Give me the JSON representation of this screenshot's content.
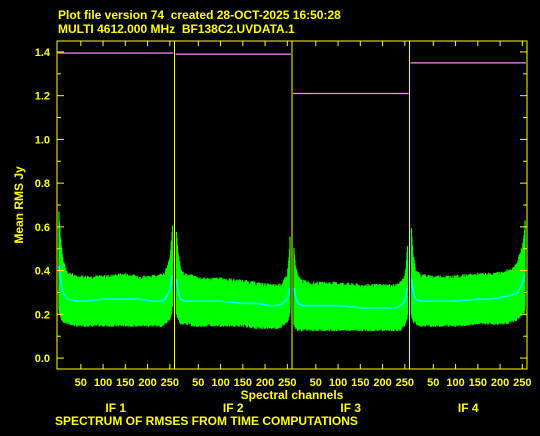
{
  "header": {
    "line1": "Plot file version 74  created 28-OCT-2025 16:50:28",
    "line2": "MULTI 4612.000 MHz  BF138C2.UVDATA.1"
  },
  "footer": "SPECTRUM OF RMSES FROM TIME COMPUTATIONS",
  "colors": {
    "text": "#ffff00",
    "band": "#00ff00",
    "mean": "#00ffff",
    "max_line": "#ff88ff",
    "axis": "#ffff00"
  },
  "chart_data": {
    "type": "line",
    "ylabel": "Mean RMS Jy",
    "xlabel": "Spectral channels",
    "ylim": [
      -0.05,
      1.45
    ],
    "yticks": [
      "0.0",
      "0.2",
      "0.4",
      "0.6",
      "0.8",
      "1.0",
      "1.2",
      "1.4"
    ],
    "ytick_values": [
      0.0,
      0.2,
      0.4,
      0.6,
      0.8,
      1.0,
      1.2,
      1.4
    ],
    "xlim": [
      1,
      256
    ],
    "xtick_values": [
      50,
      100,
      150,
      200,
      250
    ],
    "xticks": [
      "50",
      "100",
      "150",
      "200",
      "250"
    ],
    "panels": [
      {
        "name": "IF 1",
        "max_level": 1.395,
        "band_top": {
          "channels": [
            1,
            4,
            10,
            20,
            40,
            60,
            100,
            150,
            180,
            210,
            230,
            240,
            250,
            254,
            256
          ],
          "values": [
            0.67,
            0.56,
            0.44,
            0.39,
            0.37,
            0.37,
            0.37,
            0.38,
            0.37,
            0.37,
            0.38,
            0.39,
            0.45,
            0.54,
            0.6
          ]
        },
        "mean": {
          "channels": [
            1,
            4,
            10,
            20,
            40,
            60,
            100,
            150,
            180,
            210,
            230,
            240,
            250,
            254,
            256
          ],
          "values": [
            0.42,
            0.36,
            0.3,
            0.27,
            0.26,
            0.26,
            0.27,
            0.27,
            0.27,
            0.26,
            0.26,
            0.27,
            0.31,
            0.36,
            0.4
          ]
        },
        "band_bottom": {
          "channels": [
            1,
            4,
            10,
            20,
            40,
            60,
            100,
            150,
            180,
            210,
            230,
            240,
            250,
            254,
            256
          ],
          "values": [
            0.22,
            0.19,
            0.17,
            0.16,
            0.15,
            0.15,
            0.15,
            0.15,
            0.15,
            0.15,
            0.15,
            0.16,
            0.18,
            0.21,
            0.24
          ]
        }
      },
      {
        "name": "IF 2",
        "max_level": 1.39,
        "band_top": {
          "channels": [
            1,
            4,
            10,
            20,
            40,
            60,
            100,
            150,
            180,
            210,
            230,
            240,
            250,
            254,
            256
          ],
          "values": [
            0.58,
            0.48,
            0.41,
            0.38,
            0.37,
            0.36,
            0.36,
            0.35,
            0.34,
            0.33,
            0.33,
            0.34,
            0.38,
            0.46,
            0.55
          ]
        },
        "mean": {
          "channels": [
            1,
            4,
            10,
            20,
            40,
            60,
            100,
            150,
            180,
            210,
            230,
            240,
            250,
            254,
            256
          ],
          "values": [
            0.36,
            0.31,
            0.27,
            0.26,
            0.26,
            0.26,
            0.26,
            0.25,
            0.25,
            0.24,
            0.24,
            0.25,
            0.27,
            0.3,
            0.34
          ]
        },
        "band_bottom": {
          "channels": [
            1,
            4,
            10,
            20,
            40,
            60,
            100,
            150,
            180,
            210,
            230,
            240,
            250,
            254,
            256
          ],
          "values": [
            0.2,
            0.18,
            0.16,
            0.16,
            0.15,
            0.15,
            0.15,
            0.15,
            0.14,
            0.14,
            0.14,
            0.15,
            0.17,
            0.19,
            0.22
          ]
        }
      },
      {
        "name": "IF 3",
        "max_level": 1.21,
        "band_top": {
          "channels": [
            1,
            4,
            10,
            20,
            40,
            60,
            100,
            150,
            180,
            210,
            230,
            240,
            250,
            254,
            256
          ],
          "values": [
            0.5,
            0.42,
            0.37,
            0.35,
            0.34,
            0.34,
            0.34,
            0.33,
            0.33,
            0.33,
            0.33,
            0.34,
            0.37,
            0.44,
            0.52
          ]
        },
        "mean": {
          "channels": [
            1,
            4,
            10,
            20,
            40,
            60,
            100,
            150,
            180,
            210,
            230,
            240,
            250,
            254,
            256
          ],
          "values": [
            0.32,
            0.28,
            0.25,
            0.24,
            0.24,
            0.24,
            0.24,
            0.23,
            0.23,
            0.23,
            0.23,
            0.24,
            0.26,
            0.3,
            0.34
          ]
        },
        "band_bottom": {
          "channels": [
            1,
            4,
            10,
            20,
            40,
            60,
            100,
            150,
            180,
            210,
            230,
            240,
            250,
            254,
            256
          ],
          "values": [
            0.16,
            0.14,
            0.13,
            0.13,
            0.13,
            0.13,
            0.13,
            0.13,
            0.13,
            0.13,
            0.13,
            0.13,
            0.15,
            0.17,
            0.2
          ]
        }
      },
      {
        "name": "IF 4",
        "max_level": 1.35,
        "band_top": {
          "channels": [
            1,
            4,
            10,
            20,
            40,
            60,
            100,
            150,
            180,
            210,
            230,
            240,
            250,
            254,
            256
          ],
          "values": [
            0.6,
            0.48,
            0.4,
            0.38,
            0.37,
            0.37,
            0.37,
            0.38,
            0.38,
            0.39,
            0.41,
            0.44,
            0.51,
            0.56,
            0.62
          ]
        },
        "mean": {
          "channels": [
            1,
            4,
            10,
            20,
            40,
            60,
            100,
            150,
            180,
            210,
            230,
            240,
            250,
            254,
            256
          ],
          "values": [
            0.36,
            0.31,
            0.27,
            0.26,
            0.26,
            0.26,
            0.26,
            0.27,
            0.27,
            0.28,
            0.29,
            0.3,
            0.34,
            0.37,
            0.4
          ]
        },
        "band_bottom": {
          "channels": [
            1,
            4,
            10,
            20,
            40,
            60,
            100,
            150,
            180,
            210,
            230,
            240,
            250,
            254,
            256
          ],
          "values": [
            0.2,
            0.17,
            0.16,
            0.15,
            0.15,
            0.15,
            0.15,
            0.16,
            0.16,
            0.16,
            0.17,
            0.18,
            0.2,
            0.21,
            0.23
          ]
        }
      }
    ]
  }
}
